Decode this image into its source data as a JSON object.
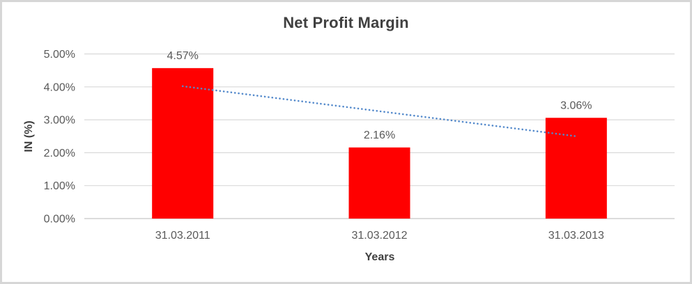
{
  "chart_data": {
    "type": "bar",
    "title": "Net Profit Margin",
    "xlabel": "Years",
    "ylabel": "IN (%)",
    "categories": [
      "31.03.2011",
      "31.03.2012",
      "31.03.2013"
    ],
    "values": [
      4.57,
      2.16,
      3.06
    ],
    "data_labels": [
      "4.57%",
      "2.16%",
      "3.06%"
    ],
    "yticks": [
      "0.00%",
      "1.00%",
      "2.00%",
      "3.00%",
      "4.00%",
      "5.00%"
    ],
    "ylim": [
      0,
      5
    ],
    "grid": "horizontal",
    "legend": "none",
    "trendline": {
      "type": "linear",
      "style": "dotted",
      "start_value": 4.02,
      "end_value": 2.5
    }
  },
  "colors": {
    "bar": "#FF0000",
    "trendline": "#5389CB",
    "gridline": "#D9D9D9",
    "axis_line": "#C6C6C6",
    "tick_text": "#595959",
    "title_text": "#404040",
    "frame_border": "#D6D6D6",
    "background": "#FFFFFF"
  }
}
